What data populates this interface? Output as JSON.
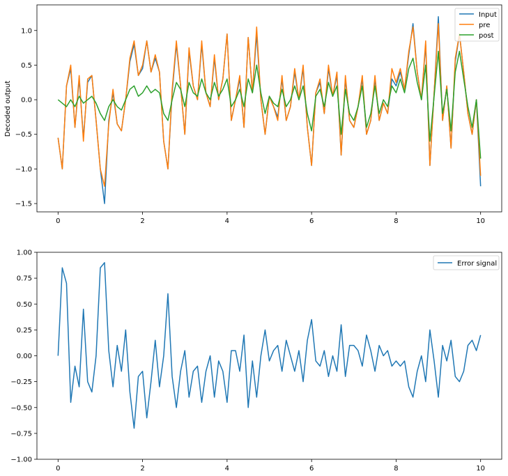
{
  "chart_data": [
    {
      "type": "line",
      "title": "",
      "xlabel": "",
      "ylabel": "Decoded output",
      "xlim": [
        -0.5,
        10.5
      ],
      "ylim": [
        -1.62,
        1.37
      ],
      "xticks": [
        "0",
        "2",
        "4",
        "6",
        "8",
        "10"
      ],
      "yticks": [
        "-1.5",
        "-1.0",
        "-0.5",
        "0.0",
        "0.5",
        "1.0"
      ],
      "grid": false,
      "legend_position": "top-right",
      "x": [
        0,
        0.1,
        0.2,
        0.3,
        0.4,
        0.5,
        0.6,
        0.7,
        0.8,
        0.9,
        1.0,
        1.1,
        1.2,
        1.3,
        1.4,
        1.5,
        1.6,
        1.7,
        1.8,
        1.9,
        2.0,
        2.1,
        2.2,
        2.3,
        2.4,
        2.5,
        2.6,
        2.7,
        2.8,
        2.9,
        3.0,
        3.1,
        3.2,
        3.3,
        3.4,
        3.5,
        3.6,
        3.7,
        3.8,
        3.9,
        4.0,
        4.1,
        4.2,
        4.3,
        4.4,
        4.5,
        4.6,
        4.7,
        4.8,
        4.9,
        5.0,
        5.1,
        5.2,
        5.3,
        5.4,
        5.5,
        5.6,
        5.7,
        5.8,
        5.9,
        6.0,
        6.1,
        6.2,
        6.3,
        6.4,
        6.5,
        6.6,
        6.7,
        6.8,
        6.9,
        7.0,
        7.1,
        7.2,
        7.3,
        7.4,
        7.5,
        7.6,
        7.7,
        7.8,
        7.9,
        8.0,
        8.1,
        8.2,
        8.3,
        8.4,
        8.5,
        8.6,
        8.7,
        8.8,
        8.9,
        9.0,
        9.1,
        9.2,
        9.3,
        9.4,
        9.5,
        9.6,
        9.7,
        9.8,
        9.9,
        10.0
      ],
      "series": [
        {
          "name": "Input",
          "color": "#1f77b4",
          "values": [
            -0.55,
            -1.0,
            0.2,
            0.45,
            -0.4,
            0.3,
            -0.55,
            0.25,
            0.35,
            -0.3,
            -1.0,
            -1.5,
            -0.3,
            0.1,
            -0.35,
            -0.45,
            0.0,
            0.55,
            0.8,
            0.35,
            0.45,
            0.85,
            0.4,
            0.6,
            0.4,
            -0.6,
            -1.0,
            0.1,
            0.8,
            0.2,
            -0.5,
            0.7,
            0.2,
            0.0,
            0.8,
            0.1,
            -0.1,
            0.6,
            0.0,
            0.3,
            0.95,
            -0.3,
            0.0,
            0.3,
            -0.4,
            0.9,
            0.1,
            0.95,
            0.0,
            -0.5,
            0.05,
            -0.1,
            -0.25,
            0.3,
            -0.3,
            -0.1,
            0.4,
            0.0,
            0.45,
            -0.4,
            -0.95,
            0.1,
            0.25,
            -0.2,
            0.45,
            0.05,
            0.35,
            -0.8,
            0.3,
            -0.3,
            -0.4,
            -0.1,
            0.3,
            -0.5,
            -0.3,
            0.3,
            -0.3,
            -0.05,
            -0.2,
            0.3,
            0.2,
            0.4,
            0.15,
            0.65,
            1.1,
            0.4,
            0.0,
            0.8,
            -0.95,
            0.1,
            1.2,
            -0.3,
            0.2,
            -0.7,
            0.55,
            0.95,
            0.4,
            -0.2,
            -0.5,
            0.0,
            -1.25
          ]
        },
        {
          "name": "pre",
          "color": "#ff7f0e",
          "values": [
            -0.55,
            -1.0,
            0.2,
            0.5,
            -0.4,
            0.35,
            -0.6,
            0.3,
            0.35,
            -0.3,
            -1.0,
            -1.25,
            -0.35,
            0.15,
            -0.35,
            -0.45,
            0.0,
            0.6,
            0.85,
            0.35,
            0.5,
            0.85,
            0.4,
            0.65,
            0.4,
            -0.6,
            -1.0,
            0.15,
            0.85,
            0.2,
            -0.5,
            0.75,
            0.2,
            0.0,
            0.85,
            0.1,
            -0.1,
            0.65,
            0.0,
            0.3,
            0.95,
            -0.3,
            0.0,
            0.35,
            -0.4,
            0.9,
            0.1,
            1.05,
            0.0,
            -0.5,
            0.05,
            -0.1,
            -0.3,
            0.35,
            -0.3,
            -0.1,
            0.45,
            0.0,
            0.5,
            -0.4,
            -0.95,
            0.1,
            0.3,
            -0.2,
            0.5,
            0.05,
            0.4,
            -0.8,
            0.35,
            -0.3,
            -0.4,
            -0.1,
            0.35,
            -0.5,
            -0.3,
            0.35,
            -0.3,
            -0.05,
            -0.2,
            0.45,
            0.25,
            0.45,
            0.15,
            0.7,
            1.05,
            0.4,
            0.0,
            0.85,
            -0.95,
            0.1,
            1.1,
            -0.3,
            0.2,
            -0.7,
            0.6,
            0.95,
            0.4,
            -0.2,
            -0.5,
            0.0,
            -1.1
          ]
        },
        {
          "name": "post",
          "color": "#2ca02c",
          "values": [
            0.0,
            -0.05,
            -0.1,
            0.0,
            -0.1,
            0.05,
            -0.05,
            0.0,
            0.05,
            -0.05,
            -0.2,
            -0.3,
            -0.1,
            0.0,
            -0.1,
            -0.15,
            0.0,
            0.15,
            0.2,
            0.05,
            0.1,
            0.2,
            0.1,
            0.15,
            0.1,
            -0.2,
            -0.3,
            0.0,
            0.25,
            0.15,
            -0.1,
            0.25,
            0.1,
            0.05,
            0.3,
            0.1,
            0.0,
            0.25,
            0.05,
            0.15,
            0.3,
            -0.1,
            0.0,
            0.15,
            -0.1,
            0.3,
            0.1,
            0.5,
            0.1,
            -0.2,
            0.05,
            -0.05,
            -0.1,
            0.15,
            -0.1,
            0.0,
            0.2,
            0.0,
            0.2,
            -0.2,
            -0.45,
            0.05,
            0.15,
            -0.1,
            0.25,
            0.05,
            0.2,
            -0.5,
            0.15,
            -0.2,
            -0.3,
            -0.1,
            0.2,
            -0.4,
            -0.2,
            0.2,
            -0.2,
            0.0,
            -0.1,
            0.2,
            0.1,
            0.3,
            0.1,
            0.45,
            0.6,
            0.25,
            0.0,
            0.5,
            -0.6,
            0.05,
            0.7,
            -0.2,
            0.15,
            -0.45,
            0.4,
            0.7,
            0.3,
            -0.1,
            -0.4,
            0.0,
            -0.85
          ]
        }
      ]
    },
    {
      "type": "line",
      "title": "",
      "xlabel": "",
      "ylabel": "",
      "xlim": [
        -0.5,
        10.5
      ],
      "ylim": [
        -1.0,
        1.0
      ],
      "xticks": [
        "0",
        "2",
        "4",
        "6",
        "8",
        "10"
      ],
      "yticks": [
        "-1.00",
        "-0.75",
        "-0.50",
        "-0.25",
        "0.00",
        "0.25",
        "0.50",
        "0.75",
        "1.00"
      ],
      "grid": false,
      "legend_position": "top-right",
      "x": [
        0,
        0.1,
        0.2,
        0.3,
        0.4,
        0.5,
        0.6,
        0.7,
        0.8,
        0.9,
        1.0,
        1.1,
        1.2,
        1.3,
        1.4,
        1.5,
        1.6,
        1.7,
        1.8,
        1.9,
        2.0,
        2.1,
        2.2,
        2.3,
        2.4,
        2.5,
        2.6,
        2.7,
        2.8,
        2.9,
        3.0,
        3.1,
        3.2,
        3.3,
        3.4,
        3.5,
        3.6,
        3.7,
        3.8,
        3.9,
        4.0,
        4.1,
        4.2,
        4.3,
        4.4,
        4.5,
        4.6,
        4.7,
        4.8,
        4.9,
        5.0,
        5.1,
        5.2,
        5.3,
        5.4,
        5.5,
        5.6,
        5.7,
        5.8,
        5.9,
        6.0,
        6.1,
        6.2,
        6.3,
        6.4,
        6.5,
        6.6,
        6.7,
        6.8,
        6.9,
        7.0,
        7.1,
        7.2,
        7.3,
        7.4,
        7.5,
        7.6,
        7.7,
        7.8,
        7.9,
        8.0,
        8.1,
        8.2,
        8.3,
        8.4,
        8.5,
        8.6,
        8.7,
        8.8,
        8.9,
        9.0,
        9.1,
        9.2,
        9.3,
        9.4,
        9.5,
        9.6,
        9.7,
        9.8,
        9.9,
        10.0
      ],
      "series": [
        {
          "name": "Error signal",
          "color": "#1f77b4",
          "values": [
            0.0,
            0.85,
            0.7,
            -0.45,
            -0.1,
            -0.3,
            0.45,
            -0.25,
            -0.35,
            0.0,
            0.85,
            0.9,
            0.05,
            -0.3,
            0.1,
            -0.15,
            0.25,
            -0.35,
            -0.7,
            -0.2,
            -0.15,
            -0.6,
            -0.25,
            0.15,
            -0.3,
            0.0,
            0.6,
            -0.2,
            -0.5,
            -0.15,
            0.05,
            -0.4,
            -0.15,
            -0.1,
            -0.45,
            -0.15,
            0.0,
            -0.4,
            -0.05,
            -0.15,
            -0.45,
            0.05,
            0.05,
            -0.15,
            0.2,
            -0.5,
            -0.05,
            -0.4,
            0.0,
            0.25,
            -0.05,
            0.05,
            0.1,
            -0.15,
            0.15,
            0.0,
            -0.15,
            0.05,
            -0.25,
            0.15,
            0.35,
            -0.05,
            -0.1,
            0.05,
            -0.2,
            0.0,
            -0.15,
            0.3,
            -0.2,
            0.1,
            0.1,
            0.05,
            -0.1,
            0.2,
            0.05,
            -0.15,
            0.1,
            0.0,
            0.05,
            -0.1,
            -0.05,
            -0.1,
            -0.05,
            -0.3,
            -0.4,
            -0.15,
            0.0,
            -0.25,
            0.25,
            -0.05,
            -0.4,
            0.1,
            -0.05,
            0.15,
            -0.2,
            -0.25,
            -0.15,
            0.1,
            0.15,
            0.05,
            0.2
          ]
        }
      ]
    }
  ]
}
